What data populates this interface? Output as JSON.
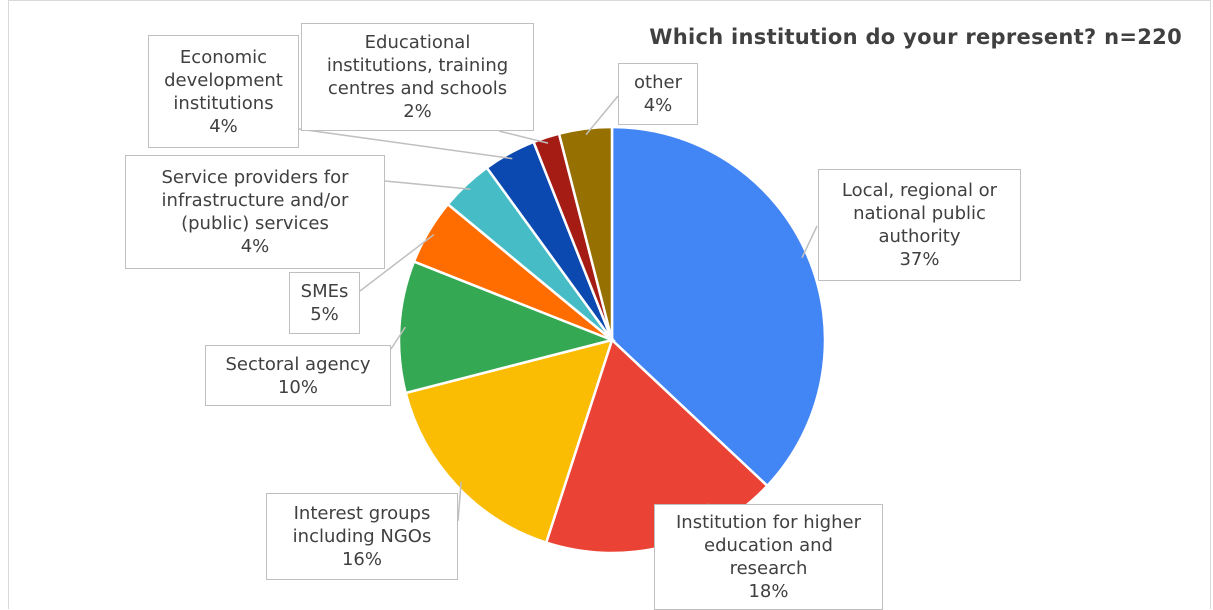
{
  "chart_data": {
    "type": "pie",
    "title": "Which institution do your represent? n=220",
    "slices": [
      {
        "label": [
          "Local, regional or",
          "national public",
          "authority"
        ],
        "pct_label": "37%",
        "value": 37,
        "color": "#4285f4"
      },
      {
        "label": [
          "Institution for higher",
          "education and",
          "research"
        ],
        "pct_label": "18%",
        "value": 18,
        "color": "#ea4335"
      },
      {
        "label": [
          "Interest groups",
          "including NGOs"
        ],
        "pct_label": "16%",
        "value": 16,
        "color": "#fbbc04"
      },
      {
        "label": [
          "Sectoral agency"
        ],
        "pct_label": "10%",
        "value": 10,
        "color": "#34a853"
      },
      {
        "label": [
          "SMEs"
        ],
        "pct_label": "5%",
        "value": 5,
        "color": "#ff6d01"
      },
      {
        "label": [
          "Service providers for",
          "infrastructure and/or",
          "(public) services"
        ],
        "pct_label": "4%",
        "value": 4,
        "color": "#46bdc6"
      },
      {
        "label": [
          "Economic",
          "development",
          "institutions"
        ],
        "pct_label": "4%",
        "value": 4,
        "color": "#0b49b0"
      },
      {
        "label": [
          "Educational",
          "institutions, training",
          "centres and schools"
        ],
        "pct_label": "2%",
        "value": 2,
        "color": "#a51c14"
      },
      {
        "label": [
          "other"
        ],
        "pct_label": "4%",
        "value": 4,
        "color": "#967000"
      }
    ]
  }
}
